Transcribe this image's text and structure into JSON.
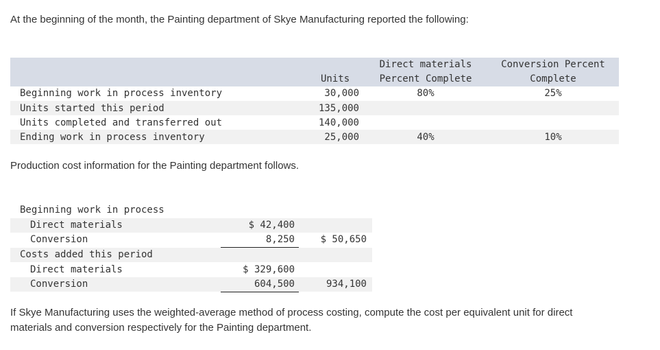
{
  "intro": "At the beginning of the month, the Painting department of Skye Manufacturing reported the following:",
  "units_table": {
    "headers": {
      "units": "Units",
      "dm_line1": "Direct materials",
      "dm_line2": "Percent Complete",
      "conv_line1": "Conversion Percent",
      "conv_line2": "Complete"
    },
    "rows": [
      {
        "label": "Beginning work in process inventory",
        "units": "30,000",
        "dm": "80%",
        "conv": "25%"
      },
      {
        "label": "Units started this period",
        "units": "135,000",
        "dm": "",
        "conv": ""
      },
      {
        "label": "Units completed and transferred out",
        "units": "140,000",
        "dm": "",
        "conv": ""
      },
      {
        "label": "Ending work in process inventory",
        "units": "25,000",
        "dm": "40%",
        "conv": "10%"
      }
    ]
  },
  "cost_intro": "Production cost information for the Painting department follows.",
  "cost_table": {
    "bwip_heading": "Beginning work in process",
    "bwip_dm_label": "Direct materials",
    "bwip_dm_value": "$ 42,400",
    "bwip_conv_label": "Conversion",
    "bwip_conv_value": "8,250",
    "bwip_total": "$ 50,650",
    "added_heading": "Costs added this period",
    "added_dm_label": "Direct materials",
    "added_dm_value": "$ 329,600",
    "added_conv_label": "Conversion",
    "added_conv_value": "604,500",
    "added_total": "934,100"
  },
  "question_line1": "If Skye Manufacturing uses the weighted-average method of process costing, compute the cost per equivalent unit for direct",
  "question_line2": "materials and conversion respectively for the Painting department."
}
